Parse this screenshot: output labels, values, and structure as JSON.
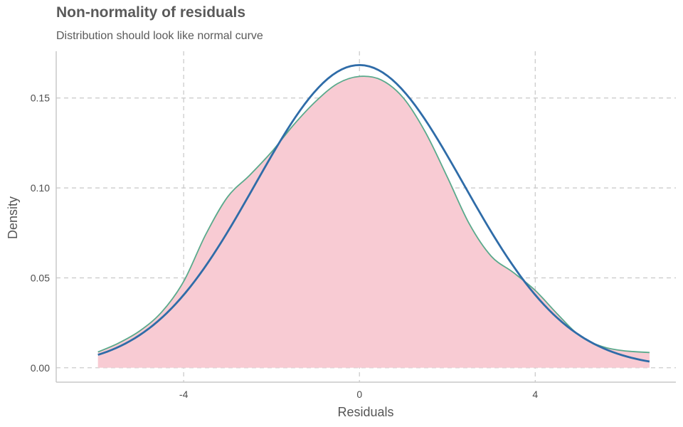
{
  "chart_data": {
    "type": "area",
    "title": "Non-normality of residuals",
    "subtitle": "Distribution should look like normal curve",
    "xlabel": "Residuals",
    "ylabel": "Density",
    "xlim": [
      -6.9,
      7.2
    ],
    "ylim": [
      -0.008,
      0.176
    ],
    "x_ticks": [
      -4,
      0,
      4
    ],
    "x_tick_labels": [
      "-4",
      "0",
      "4"
    ],
    "y_ticks": [
      0.0,
      0.05,
      0.1,
      0.15
    ],
    "y_tick_labels": [
      "0.00",
      "0.05",
      "0.10",
      "0.15"
    ],
    "grid": true,
    "grid_style": "dashed",
    "series": [
      {
        "kind": "density-area",
        "fill": "#f8cbd3",
        "stroke": "#5aaa8c",
        "x": [
          -5.95,
          -5.5,
          -5.0,
          -4.5,
          -4.0,
          -3.5,
          -3.0,
          -2.5,
          -2.0,
          -1.5,
          -1.0,
          -0.5,
          0.0,
          0.5,
          1.0,
          1.5,
          2.0,
          2.5,
          3.0,
          3.5,
          4.0,
          4.5,
          5.0,
          5.5,
          6.0,
          6.6
        ],
        "y": [
          0.0088,
          0.0135,
          0.0205,
          0.031,
          0.048,
          0.074,
          0.095,
          0.107,
          0.12,
          0.135,
          0.148,
          0.158,
          0.162,
          0.16,
          0.15,
          0.131,
          0.106,
          0.08,
          0.062,
          0.053,
          0.043,
          0.03,
          0.018,
          0.012,
          0.0095,
          0.0085
        ]
      },
      {
        "kind": "normal-curve",
        "stroke": "#2f6ca8",
        "mean": 0.0,
        "sd": 2.37,
        "x_range": [
          -5.95,
          6.6
        ]
      }
    ]
  }
}
